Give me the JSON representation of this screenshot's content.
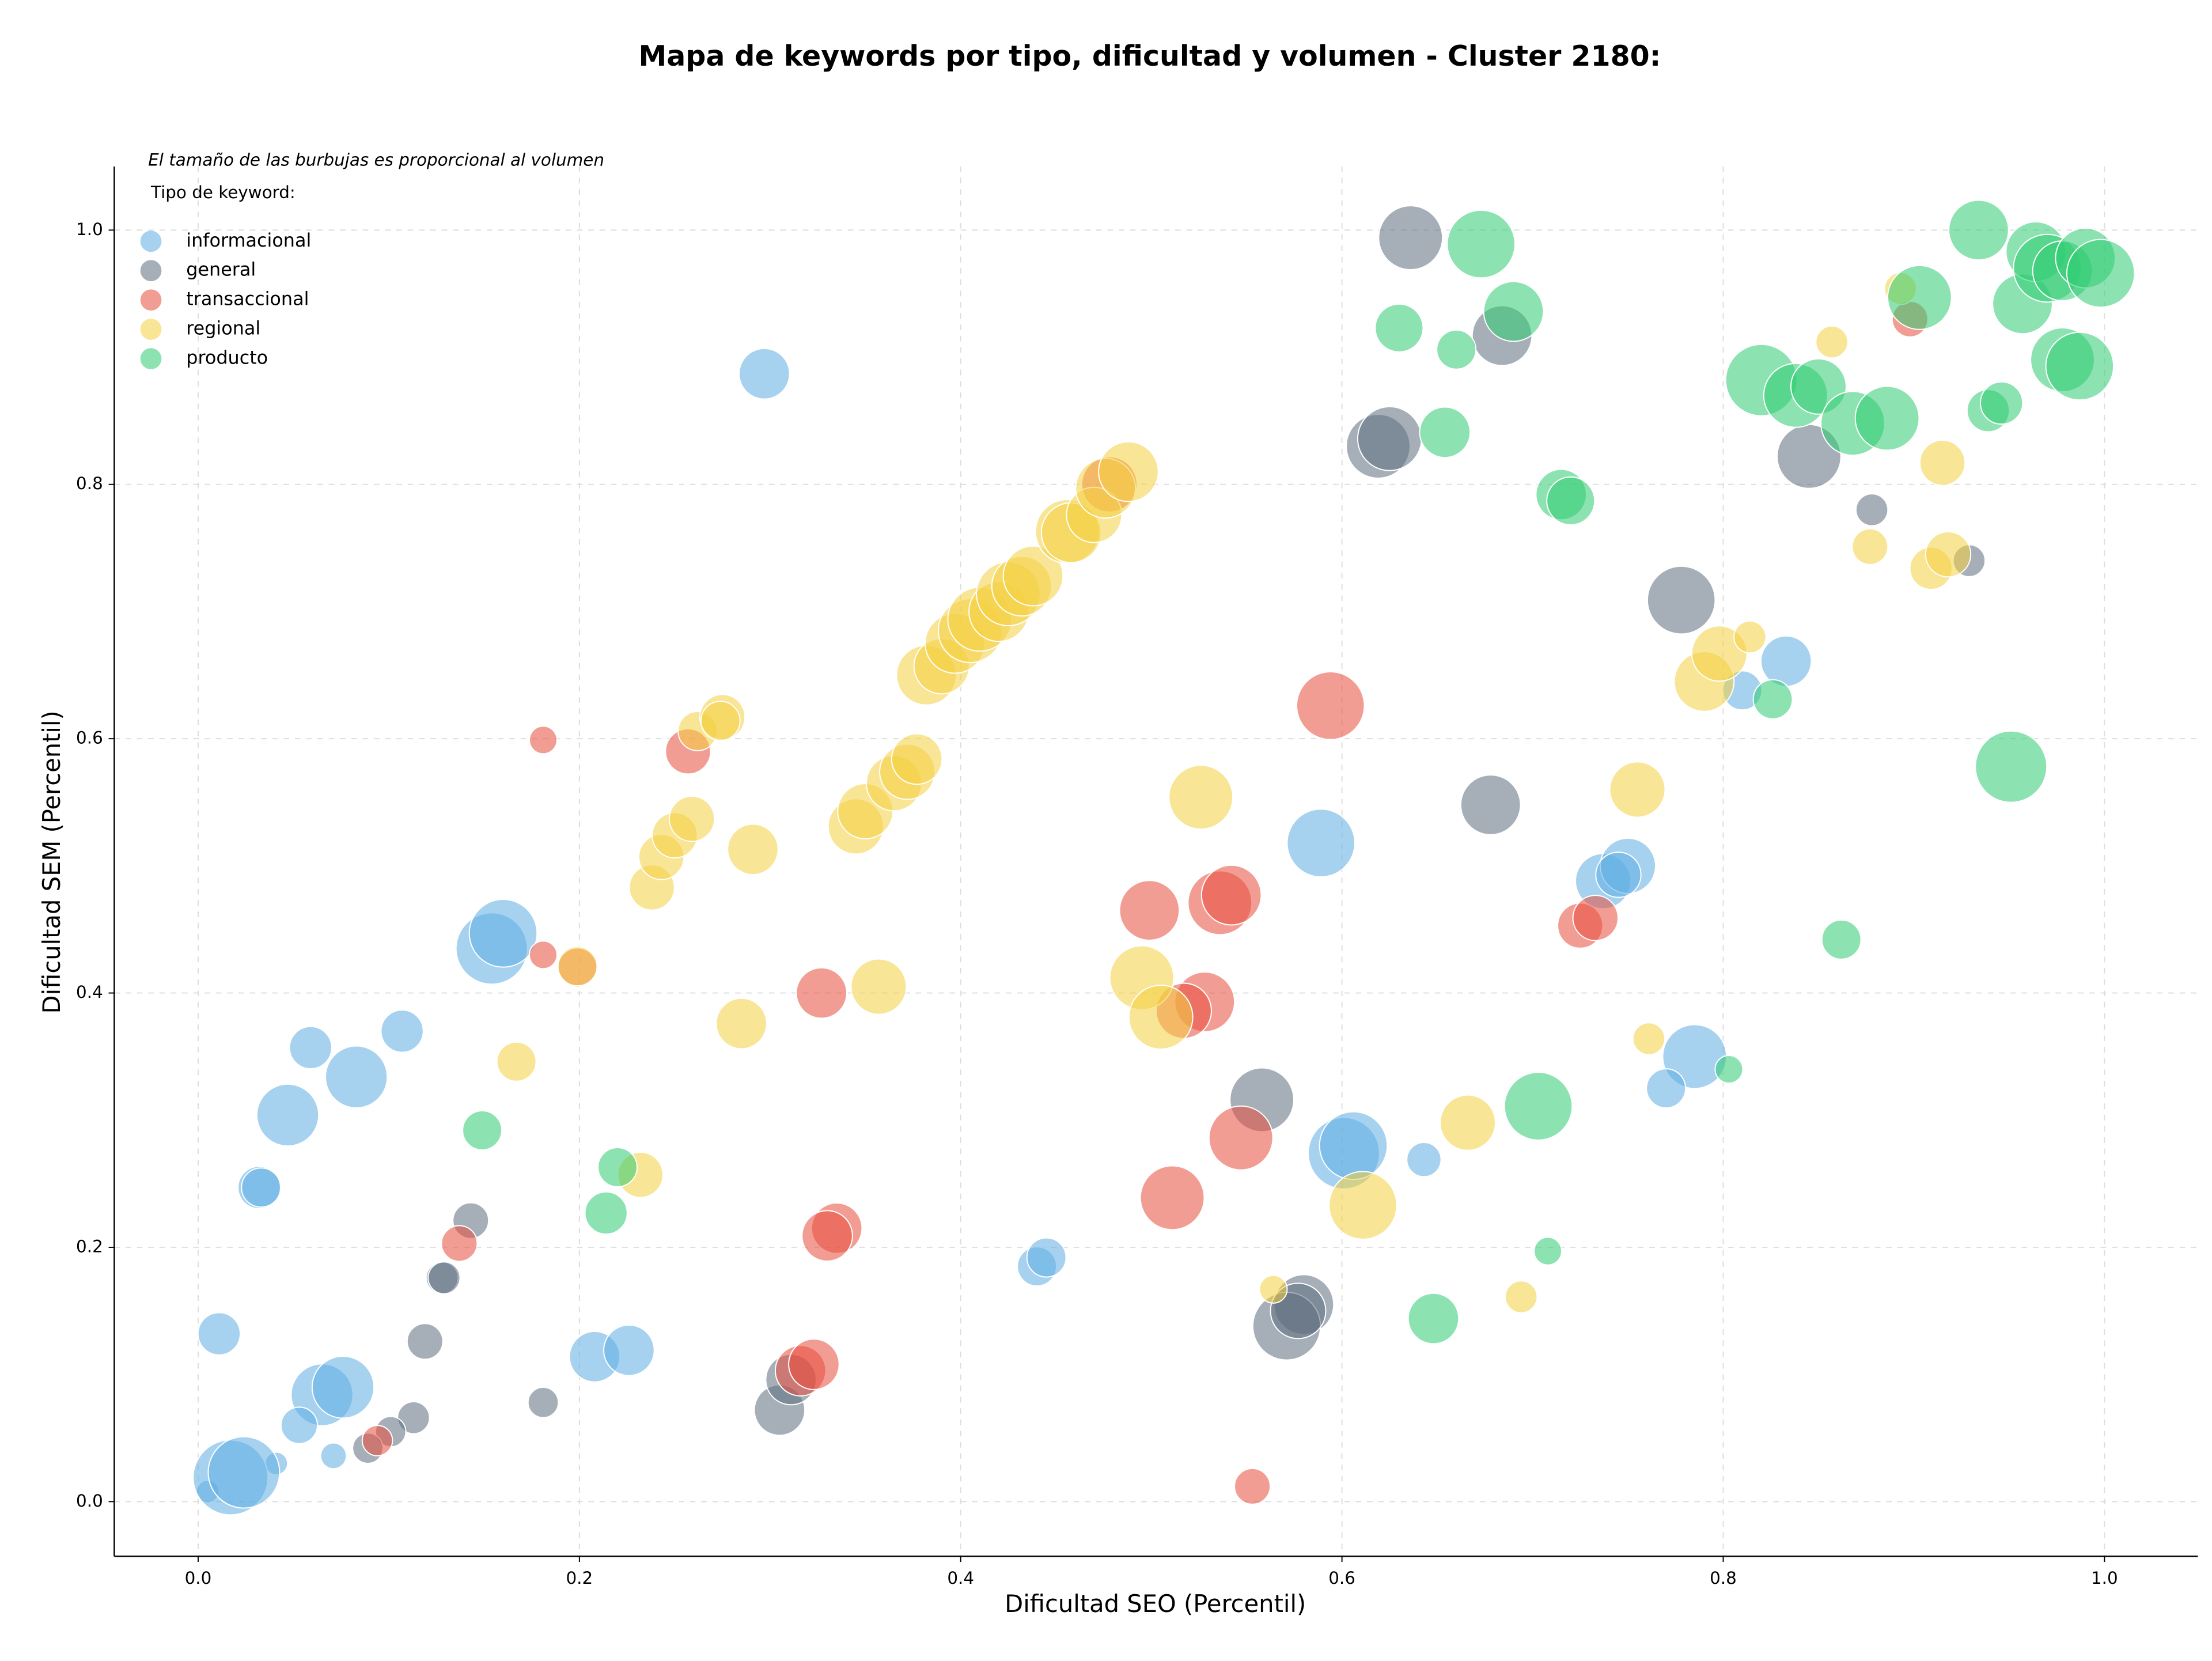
{
  "chart_data": {
    "type": "scatter",
    "title": "Mapa de keywords por tipo, dificultad y volumen - Cluster 2180:",
    "note": "El tamaño de las burbujas es proporcional al volumen",
    "legend_title": "Tipo de keyword:",
    "legend_loc": "upper left",
    "x_label": "Dificultad SEO (Percentil)",
    "y_label": "Dificultad SEM (Percentil)",
    "xlim": [
      -0.044,
      1.049
    ],
    "ylim": [
      -0.043,
      1.05
    ],
    "xticks": [
      {
        "value": 0,
        "label": "0.0"
      },
      0.2,
      0.4,
      0.6,
      0.8,
      {
        "value": 1,
        "label": "1.0"
      }
    ],
    "yticks": [
      {
        "value": 0,
        "label": "0.0"
      },
      0.2,
      0.4,
      0.6,
      0.8,
      {
        "value": 1,
        "label": "1.0"
      }
    ],
    "grid": true,
    "series": [
      {
        "name": "informacional",
        "color": "#5dade2",
        "x": [
          0.297,
          0.154,
          0.16,
          0.107,
          0.059,
          0.083,
          0.047,
          0.032,
          0.033,
          0.011,
          0.065,
          0.076,
          0.053,
          0.071,
          0.041,
          0.005,
          0.017,
          0.024,
          0.208,
          0.226,
          0.44,
          0.445,
          0.589,
          0.601,
          0.606,
          0.643,
          0.737,
          0.75,
          0.745,
          0.833,
          0.81,
          0.785,
          0.77
        ],
        "y": [
          0.887,
          0.435,
          0.447,
          0.37,
          0.357,
          0.334,
          0.304,
          0.247,
          0.247,
          0.132,
          0.084,
          0.09,
          0.06,
          0.036,
          0.03,
          0.008,
          0.019,
          0.023,
          0.114,
          0.119,
          0.185,
          0.192,
          0.518,
          0.274,
          0.28,
          0.269,
          0.488,
          0.5,
          0.493,
          0.661,
          0.638,
          0.35,
          0.325
        ],
        "sizes": [
          5,
          10,
          9,
          3.5,
          3.5,
          7.5,
          7.5,
          3.5,
          3,
          3.5,
          7.5,
          7.5,
          2.6,
          1.3,
          1,
          1,
          11,
          10,
          5,
          5,
          3,
          3,
          9,
          10,
          9,
          2.3,
          6,
          6,
          4,
          5,
          3,
          8,
          3
        ]
      },
      {
        "name": "general",
        "color": "#5d6d7e",
        "x": [
          0.636,
          0.684,
          0.619,
          0.625,
          0.845,
          0.878,
          0.929,
          0.778,
          0.678,
          0.558,
          0.58,
          0.571,
          0.577,
          0.305,
          0.311,
          0.143,
          0.128,
          0.129,
          0.119,
          0.181,
          0.113,
          0.101,
          0.089
        ],
        "y": [
          0.994,
          0.917,
          0.83,
          0.836,
          0.822,
          0.78,
          0.74,
          0.709,
          0.548,
          0.316,
          0.155,
          0.138,
          0.15,
          0.072,
          0.096,
          0.221,
          0.176,
          0.176,
          0.126,
          0.078,
          0.066,
          0.055,
          0.042
        ],
        "sizes": [
          8,
          7,
          8,
          8,
          8,
          2,
          2,
          9,
          7,
          8,
          7,
          9,
          6,
          5,
          5,
          2.5,
          2,
          2,
          2.5,
          1.8,
          2,
          1.8,
          1.8
        ]
      },
      {
        "name": "transaccional",
        "color": "#e74c3c",
        "x": [
          0.181,
          0.257,
          0.181,
          0.199,
          0.327,
          0.137,
          0.094,
          0.335,
          0.33,
          0.316,
          0.323,
          0.499,
          0.536,
          0.542,
          0.528,
          0.517,
          0.547,
          0.511,
          0.594,
          0.478,
          0.725,
          0.733,
          0.553,
          0.898
        ],
        "y": [
          0.599,
          0.59,
          0.43,
          0.42,
          0.4,
          0.203,
          0.048,
          0.215,
          0.209,
          0.103,
          0.108,
          0.465,
          0.471,
          0.477,
          0.393,
          0.386,
          0.286,
          0.239,
          0.626,
          0.8,
          0.453,
          0.459,
          0.012,
          0.93
        ],
        "sizes": [
          1.5,
          4,
          1.5,
          3,
          5,
          2.5,
          1.8,
          5,
          5,
          5,
          5,
          7,
          8,
          7,
          7,
          6,
          8,
          8,
          9,
          6,
          4,
          4,
          2.5,
          2.5
        ]
      },
      {
        "name": "regional",
        "color": "#f4d03f",
        "x": [
          0.262,
          0.275,
          0.274,
          0.238,
          0.243,
          0.25,
          0.259,
          0.291,
          0.285,
          0.167,
          0.199,
          0.232,
          0.345,
          0.35,
          0.365,
          0.372,
          0.377,
          0.357,
          0.382,
          0.39,
          0.397,
          0.405,
          0.41,
          0.42,
          0.425,
          0.432,
          0.438,
          0.456,
          0.458,
          0.47,
          0.476,
          0.488,
          0.526,
          0.495,
          0.505,
          0.611,
          0.666,
          0.564,
          0.694,
          0.755,
          0.761,
          0.79,
          0.798,
          0.814,
          0.877,
          0.909,
          0.918,
          0.915,
          0.857,
          0.893
        ],
        "y": [
          0.606,
          0.617,
          0.614,
          0.483,
          0.507,
          0.524,
          0.537,
          0.513,
          0.376,
          0.346,
          0.421,
          0.257,
          0.531,
          0.543,
          0.565,
          0.574,
          0.584,
          0.405,
          0.65,
          0.657,
          0.675,
          0.685,
          0.694,
          0.7,
          0.714,
          0.72,
          0.728,
          0.763,
          0.762,
          0.776,
          0.797,
          0.81,
          0.554,
          0.412,
          0.381,
          0.233,
          0.298,
          0.167,
          0.161,
          0.56,
          0.364,
          0.645,
          0.667,
          0.68,
          0.751,
          0.734,
          0.745,
          0.817,
          0.912,
          0.954
        ],
        "sizes": [
          3,
          4,
          3,
          4,
          4,
          4,
          4,
          5,
          5,
          3,
          3,
          4,
          6,
          6,
          6,
          6,
          5,
          6,
          7,
          6,
          7,
          8,
          8,
          7,
          8,
          7,
          7,
          8,
          7,
          6,
          7,
          7,
          8,
          8,
          8,
          9,
          6,
          1.5,
          2,
          6,
          2,
          7,
          6,
          2,
          2.5,
          3.5,
          4,
          4,
          2,
          2
        ]
      },
      {
        "name": "producto",
        "color": "#2ecc71",
        "x": [
          0.149,
          0.22,
          0.214,
          0.673,
          0.63,
          0.66,
          0.69,
          0.654,
          0.715,
          0.72,
          0.703,
          0.708,
          0.648,
          0.803,
          0.826,
          0.862,
          0.951,
          0.82,
          0.838,
          0.85,
          0.868,
          0.886,
          0.934,
          0.903,
          0.939,
          0.946,
          0.957,
          0.964,
          0.97,
          0.978,
          0.99,
          0.998,
          0.978,
          0.987
        ],
        "y": [
          0.292,
          0.263,
          0.227,
          0.989,
          0.923,
          0.906,
          0.936,
          0.841,
          0.792,
          0.787,
          0.311,
          0.197,
          0.144,
          0.34,
          0.631,
          0.442,
          0.578,
          0.882,
          0.87,
          0.877,
          0.848,
          0.852,
          1.0,
          0.947,
          0.858,
          0.864,
          0.942,
          0.983,
          0.97,
          0.968,
          0.978,
          0.966,
          0.898,
          0.893
        ],
        "sizes": [
          3,
          3,
          3.5,
          9,
          4.5,
          3,
          7,
          5,
          5,
          4.5,
          9,
          1.5,
          5,
          1.5,
          3,
          3,
          10,
          10,
          8,
          6,
          8,
          8,
          7,
          8,
          3.5,
          3.5,
          7,
          7,
          9,
          7,
          7,
          9,
          8,
          9
        ]
      }
    ]
  }
}
